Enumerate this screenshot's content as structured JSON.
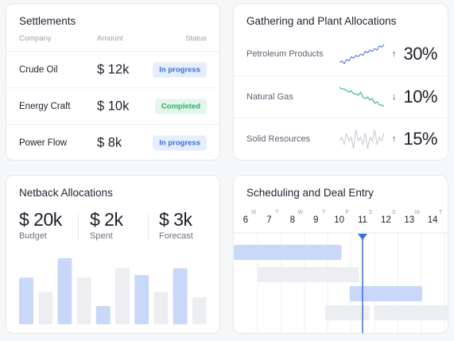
{
  "settlements": {
    "title": "Settlements",
    "columns": [
      "Company",
      "Amount",
      "Status"
    ],
    "rows": [
      {
        "company": "Crude Oil",
        "amount": "$ 12k",
        "status": "In progress",
        "status_kind": "progress"
      },
      {
        "company": "Energy Craft",
        "amount": "$ 10k",
        "status": "Completed",
        "status_kind": "done"
      },
      {
        "company": "Power Flow",
        "amount": "$ 8k",
        "status": "In progress",
        "status_kind": "progress"
      }
    ]
  },
  "gathering": {
    "title": "Gathering and Plant Allocations",
    "rows": [
      {
        "name": "Petroleum Products",
        "arrow": "↑",
        "percent": "30%",
        "trend_color": "#3b6fd8",
        "trend": [
          4,
          5,
          3,
          6,
          5,
          8,
          7,
          9,
          8,
          10,
          9,
          12,
          11,
          13,
          12,
          14,
          13,
          16,
          15,
          17
        ]
      },
      {
        "name": "Natural Gas",
        "arrow": "↓",
        "percent": "10%",
        "trend_color": "#1ea86a",
        "trend": [
          15,
          14,
          14,
          13,
          12,
          13,
          11,
          11,
          10,
          12,
          9,
          8,
          9,
          7,
          8,
          5,
          6,
          4,
          4,
          3
        ]
      },
      {
        "name": "Solid Resources",
        "arrow": "↑",
        "percent": "15%",
        "trend_color": "#c4c8d0",
        "trend": [
          8,
          9,
          7,
          10,
          8,
          9,
          6,
          11,
          8,
          9,
          7,
          10,
          6,
          9,
          8,
          11,
          7,
          9,
          8,
          10
        ]
      }
    ]
  },
  "netback": {
    "title": "Netback Allocations",
    "metrics": [
      {
        "value": "$ 20k",
        "label": "Budget"
      },
      {
        "value": "$ 2k",
        "label": "Spent"
      },
      {
        "value": "$ 3k",
        "label": "Forecast"
      }
    ],
    "bars": [
      {
        "value": 0.69,
        "highlight": true
      },
      {
        "value": 0.48,
        "highlight": false
      },
      {
        "value": 0.98,
        "highlight": true
      },
      {
        "value": 0.69,
        "highlight": false
      },
      {
        "value": 0.27,
        "highlight": true
      },
      {
        "value": 0.83,
        "highlight": false
      },
      {
        "value": 0.73,
        "highlight": true
      },
      {
        "value": 0.48,
        "highlight": false
      },
      {
        "value": 0.83,
        "highlight": true
      },
      {
        "value": 0.4,
        "highlight": false
      }
    ],
    "colors": {
      "highlight": "#c9d8f8",
      "normal": "#eceef1"
    }
  },
  "scheduling": {
    "title": "Scheduling and Deal Entry",
    "days": [
      {
        "letter": "M",
        "num": "6"
      },
      {
        "letter": "T",
        "num": "7"
      },
      {
        "letter": "W",
        "num": "8"
      },
      {
        "letter": "T",
        "num": "9"
      },
      {
        "letter": "F",
        "num": "10"
      },
      {
        "letter": "S",
        "num": "11"
      },
      {
        "letter": "S",
        "num": "12"
      },
      {
        "letter": "M",
        "num": "13"
      },
      {
        "letter": "T",
        "num": "14"
      }
    ],
    "today_marker_day": 11,
    "accent": "#3b6fd8",
    "tasks": [
      {
        "start": 5.5,
        "end": 10.1,
        "highlight": true
      },
      {
        "start": 6.5,
        "end": 10.85,
        "highlight": false
      },
      {
        "start": 10.45,
        "end": 13.55,
        "highlight": true
      },
      {
        "start": 9.4,
        "end": 11.3,
        "highlight": false
      },
      {
        "start": 11.5,
        "end": 14.8,
        "highlight": false
      }
    ]
  }
}
